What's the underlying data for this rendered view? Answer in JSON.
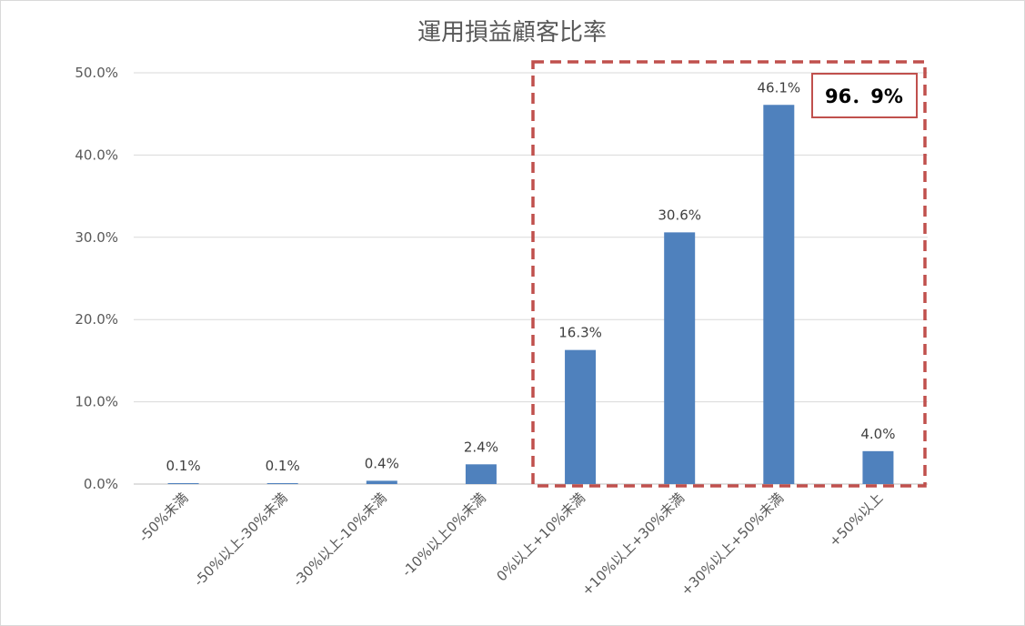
{
  "chart_data": {
    "type": "bar",
    "title": "運用損益顧客比率",
    "categories": [
      "-50%未満",
      "-50%以上-30%未満",
      "-30%以上-10%未満",
      "-10%以上0%未満",
      "0%以上+10%未満",
      "+10%以上+30%未満",
      "+30%以上+50%未満",
      "+50%以上"
    ],
    "values": [
      0.1,
      0.1,
      0.4,
      2.4,
      16.3,
      30.6,
      46.1,
      4.0
    ],
    "data_labels": [
      "0.1%",
      "0.1%",
      "0.4%",
      "2.4%",
      "16.3%",
      "30.6%",
      "46.1%",
      "4.0%"
    ],
    "y_ticks": [
      0,
      10,
      20,
      30,
      40,
      50
    ],
    "y_tick_labels": [
      "0.0%",
      "10.0%",
      "20.0%",
      "30.0%",
      "40.0%",
      "50.0%"
    ],
    "ylim": [
      0,
      50
    ],
    "grid": true,
    "legend": "none",
    "bar_color": "#4f81bd",
    "highlight": {
      "label": "96．9%",
      "from_category": 4,
      "to_category": 7,
      "color": "#c0504d"
    }
  }
}
